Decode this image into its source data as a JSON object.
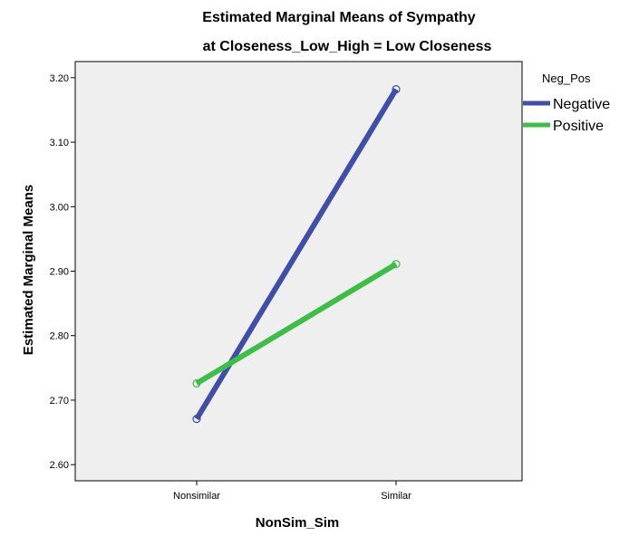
{
  "chart_data": {
    "type": "line",
    "title": "Estimated Marginal Means of Sympathy",
    "subtitle": "at Closeness_Low_High = Low Closeness",
    "xlabel": "NonSim_Sim",
    "ylabel": "Estimated Marginal Means",
    "categories": [
      "Nonsimilar",
      "Similar"
    ],
    "ylim": [
      2.575,
      3.225
    ],
    "yticks": [
      2.6,
      2.7,
      2.8,
      2.9,
      3.0,
      3.1,
      3.2
    ],
    "ytick_labels": [
      "2.60",
      "2.70",
      "2.80",
      "2.90",
      "3.00",
      "3.10",
      "3.20"
    ],
    "grid": false,
    "legend": {
      "title": "Neg_Pos",
      "placement": "right"
    },
    "series": [
      {
        "name": "Negative",
        "values": [
          2.671,
          3.182
        ],
        "color": "#3F4EA8"
      },
      {
        "name": "Positive",
        "values": [
          2.726,
          2.911
        ],
        "color": "#3DBE46"
      }
    ],
    "plot_background": "#EFEFEF"
  }
}
